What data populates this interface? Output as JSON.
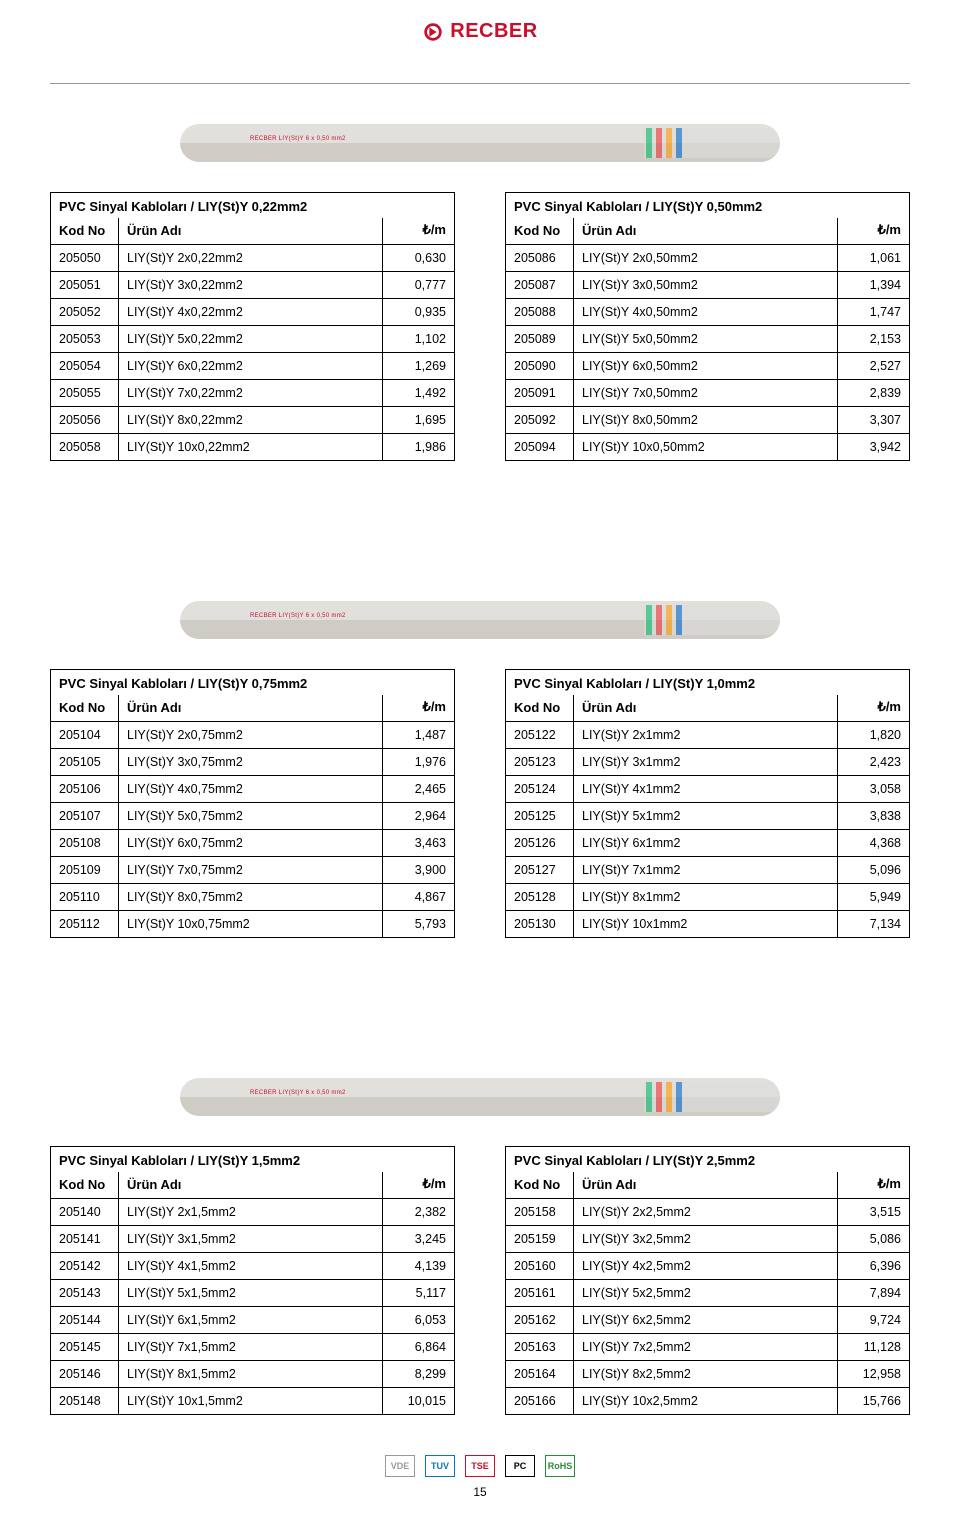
{
  "logo": {
    "text": "RECBER"
  },
  "page_number": "15",
  "columns": {
    "kod": "Kod No",
    "urun": "Ürün Adı",
    "price_unit": "₺/m"
  },
  "sections": [
    {
      "left": {
        "title": "PVC Sinyal Kabloları / LIY(St)Y 0,22mm2",
        "rows": [
          {
            "kod": "205050",
            "urun": "LIY(St)Y 2x0,22mm2",
            "price": "0,630"
          },
          {
            "kod": "205051",
            "urun": "LIY(St)Y 3x0,22mm2",
            "price": "0,777"
          },
          {
            "kod": "205052",
            "urun": "LIY(St)Y 4x0,22mm2",
            "price": "0,935"
          },
          {
            "kod": "205053",
            "urun": "LIY(St)Y 5x0,22mm2",
            "price": "1,102"
          },
          {
            "kod": "205054",
            "urun": "LIY(St)Y 6x0,22mm2",
            "price": "1,269"
          },
          {
            "kod": "205055",
            "urun": "LIY(St)Y 7x0,22mm2",
            "price": "1,492"
          },
          {
            "kod": "205056",
            "urun": "LIY(St)Y 8x0,22mm2",
            "price": "1,695"
          },
          {
            "kod": "205058",
            "urun": "LIY(St)Y 10x0,22mm2",
            "price": "1,986"
          }
        ]
      },
      "right": {
        "title": "PVC Sinyal Kabloları / LIY(St)Y 0,50mm2",
        "rows": [
          {
            "kod": "205086",
            "urun": "LIY(St)Y 2x0,50mm2",
            "price": "1,061"
          },
          {
            "kod": "205087",
            "urun": "LIY(St)Y 3x0,50mm2",
            "price": "1,394"
          },
          {
            "kod": "205088",
            "urun": "LIY(St)Y 4x0,50mm2",
            "price": "1,747"
          },
          {
            "kod": "205089",
            "urun": "LIY(St)Y 5x0,50mm2",
            "price": "2,153"
          },
          {
            "kod": "205090",
            "urun": "LIY(St)Y 6x0,50mm2",
            "price": "2,527"
          },
          {
            "kod": "205091",
            "urun": "LIY(St)Y 7x0,50mm2",
            "price": "2,839"
          },
          {
            "kod": "205092",
            "urun": "LIY(St)Y 8x0,50mm2",
            "price": "3,307"
          },
          {
            "kod": "205094",
            "urun": "LIY(St)Y 10x0,50mm2",
            "price": "3,942"
          }
        ]
      }
    },
    {
      "left": {
        "title": "PVC Sinyal Kabloları / LIY(St)Y 0,75mm2",
        "rows": [
          {
            "kod": "205104",
            "urun": "LIY(St)Y 2x0,75mm2",
            "price": "1,487"
          },
          {
            "kod": "205105",
            "urun": "LIY(St)Y 3x0,75mm2",
            "price": "1,976"
          },
          {
            "kod": "205106",
            "urun": "LIY(St)Y 4x0,75mm2",
            "price": "2,465"
          },
          {
            "kod": "205107",
            "urun": "LIY(St)Y 5x0,75mm2",
            "price": "2,964"
          },
          {
            "kod": "205108",
            "urun": "LIY(St)Y 6x0,75mm2",
            "price": "3,463"
          },
          {
            "kod": "205109",
            "urun": "LIY(St)Y 7x0,75mm2",
            "price": "3,900"
          },
          {
            "kod": "205110",
            "urun": "LIY(St)Y 8x0,75mm2",
            "price": "4,867"
          },
          {
            "kod": "205112",
            "urun": "LIY(St)Y 10x0,75mm2",
            "price": "5,793"
          }
        ]
      },
      "right": {
        "title": "PVC Sinyal Kabloları / LIY(St)Y 1,0mm2",
        "rows": [
          {
            "kod": "205122",
            "urun": "LIY(St)Y 2x1mm2",
            "price": "1,820"
          },
          {
            "kod": "205123",
            "urun": "LIY(St)Y 3x1mm2",
            "price": "2,423"
          },
          {
            "kod": "205124",
            "urun": "LIY(St)Y 4x1mm2",
            "price": "3,058"
          },
          {
            "kod": "205125",
            "urun": "LIY(St)Y 5x1mm2",
            "price": "3,838"
          },
          {
            "kod": "205126",
            "urun": "LIY(St)Y 6x1mm2",
            "price": "4,368"
          },
          {
            "kod": "205127",
            "urun": "LIY(St)Y 7x1mm2",
            "price": "5,096"
          },
          {
            "kod": "205128",
            "urun": "LIY(St)Y 8x1mm2",
            "price": "5,949"
          },
          {
            "kod": "205130",
            "urun": "LIY(St)Y 10x1mm2",
            "price": "7,134"
          }
        ]
      }
    },
    {
      "left": {
        "title": "PVC Sinyal Kabloları / LIY(St)Y 1,5mm2",
        "rows": [
          {
            "kod": "205140",
            "urun": "LIY(St)Y 2x1,5mm2",
            "price": "2,382"
          },
          {
            "kod": "205141",
            "urun": "LIY(St)Y 3x1,5mm2",
            "price": "3,245"
          },
          {
            "kod": "205142",
            "urun": "LIY(St)Y 4x1,5mm2",
            "price": "4,139"
          },
          {
            "kod": "205143",
            "urun": "LIY(St)Y 5x1,5mm2",
            "price": "5,117"
          },
          {
            "kod": "205144",
            "urun": "LIY(St)Y 6x1,5mm2",
            "price": "6,053"
          },
          {
            "kod": "205145",
            "urun": "LIY(St)Y 7x1,5mm2",
            "price": "6,864"
          },
          {
            "kod": "205146",
            "urun": "LIY(St)Y 8x1,5mm2",
            "price": "8,299"
          },
          {
            "kod": "205148",
            "urun": "LIY(St)Y 10x1,5mm2",
            "price": "10,015"
          }
        ]
      },
      "right": {
        "title": "PVC Sinyal Kabloları / LIY(St)Y 2,5mm2",
        "rows": [
          {
            "kod": "205158",
            "urun": "LIY(St)Y 2x2,5mm2",
            "price": "3,515"
          },
          {
            "kod": "205159",
            "urun": "LIY(St)Y 3x2,5mm2",
            "price": "5,086"
          },
          {
            "kod": "205160",
            "urun": "LIY(St)Y 4x2,5mm2",
            "price": "6,396"
          },
          {
            "kod": "205161",
            "urun": "LIY(St)Y 5x2,5mm2",
            "price": "7,894"
          },
          {
            "kod": "205162",
            "urun": "LIY(St)Y 6x2,5mm2",
            "price": "9,724"
          },
          {
            "kod": "205163",
            "urun": "LIY(St)Y 7x2,5mm2",
            "price": "11,128"
          },
          {
            "kod": "205164",
            "urun": "LIY(St)Y 8x2,5mm2",
            "price": "12,958"
          },
          {
            "kod": "205166",
            "urun": "LIY(St)Y 10x2,5mm2",
            "price": "15,766"
          }
        ]
      }
    }
  ],
  "certs": [
    "VDE",
    "TUV",
    "TSE",
    "PC",
    "RoHS"
  ]
}
